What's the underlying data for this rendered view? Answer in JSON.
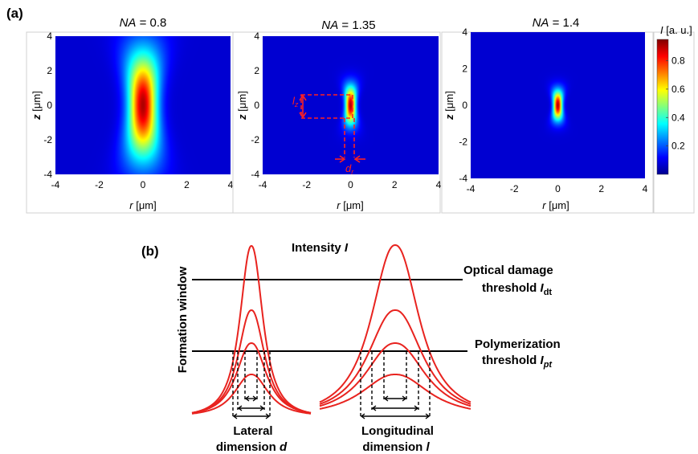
{
  "panel_a": {
    "label": "(a)",
    "colorbar": {
      "label_var": "I",
      "label_unit": " [a. u.]",
      "ticks": [
        0.2,
        0.4,
        0.6,
        0.8
      ],
      "range": [
        0,
        0.95
      ]
    },
    "axes": {
      "r_label_var": "r",
      "r_label_unit": " [μm]",
      "z_label_var": "z",
      "z_label_unit": " [μm]",
      "r_ticks": [
        -4,
        -2,
        0,
        2,
        4
      ],
      "z_ticks": [
        -4,
        -2,
        0,
        2,
        4
      ]
    },
    "plots": [
      {
        "title_var": "NA",
        "title_val": " = 0.8",
        "sigma_r": 0.45,
        "sigma_z": 2.1,
        "peak": 0.95
      },
      {
        "title_var": "NA",
        "title_val": " = 1.35",
        "sigma_r": 0.16,
        "sigma_z": 0.75,
        "peak": 0.95,
        "annotation_lz": "l",
        "annotation_lz_sub": "z",
        "annotation_dr": "d",
        "annotation_dr_sub": "r"
      },
      {
        "title_var": "NA",
        "title_val": " = 1.4",
        "sigma_r": 0.14,
        "sigma_z": 0.55,
        "peak": 0.95
      }
    ]
  },
  "panel_b": {
    "label": "(b)",
    "y_axis_label": "Formation window",
    "intensity_label": "Intensity ",
    "intensity_var": "I",
    "damage_label_1": "Optical damage",
    "damage_label_2": "threshold ",
    "damage_var": "I",
    "damage_sub": "dt",
    "poly_label_1": "Polymerization",
    "poly_label_2": "threshold ",
    "poly_var": "I",
    "poly_sub": "pt",
    "lateral_label_1": "Lateral",
    "lateral_label_2": "dimension ",
    "lateral_var": "d",
    "longitudinal_label_1": "Longitudinal",
    "longitudinal_label_2": "dimension ",
    "longitudinal_var": "l",
    "line_color": "#e8231f"
  }
}
